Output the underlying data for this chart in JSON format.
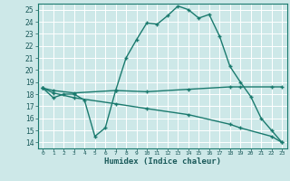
{
  "title": "",
  "xlabel": "Humidex (Indice chaleur)",
  "bg_color": "#cde8e8",
  "grid_color": "#ffffff",
  "line_color": "#1a7a6e",
  "xlim": [
    -0.5,
    23.5
  ],
  "ylim": [
    13.5,
    25.5
  ],
  "xticks": [
    0,
    1,
    2,
    3,
    4,
    5,
    6,
    7,
    8,
    9,
    10,
    11,
    12,
    13,
    14,
    15,
    16,
    17,
    18,
    19,
    20,
    21,
    22,
    23
  ],
  "yticks": [
    14,
    15,
    16,
    17,
    18,
    19,
    20,
    21,
    22,
    23,
    24,
    25
  ],
  "series": [
    {
      "x": [
        0,
        1,
        2,
        3,
        4,
        5,
        6,
        7,
        8,
        9,
        10,
        11,
        12,
        13,
        14,
        15,
        16,
        17,
        18,
        19,
        20,
        21,
        22,
        23
      ],
      "y": [
        18.5,
        17.7,
        18.0,
        18.0,
        17.5,
        14.5,
        15.2,
        18.3,
        21.0,
        22.5,
        23.9,
        23.8,
        24.5,
        25.3,
        25.0,
        24.3,
        24.6,
        22.8,
        20.3,
        19.0,
        17.8,
        16.0,
        15.0,
        14.0
      ]
    },
    {
      "x": [
        0,
        1,
        3,
        7,
        10,
        14,
        18,
        19,
        22,
        23
      ],
      "y": [
        18.5,
        18.3,
        18.1,
        18.3,
        18.2,
        18.4,
        18.6,
        18.6,
        18.6,
        18.6
      ]
    },
    {
      "x": [
        0,
        1,
        3,
        7,
        10,
        14,
        18,
        19,
        22,
        23
      ],
      "y": [
        18.5,
        18.1,
        17.7,
        17.2,
        16.8,
        16.3,
        15.5,
        15.2,
        14.5,
        14.0
      ]
    }
  ]
}
